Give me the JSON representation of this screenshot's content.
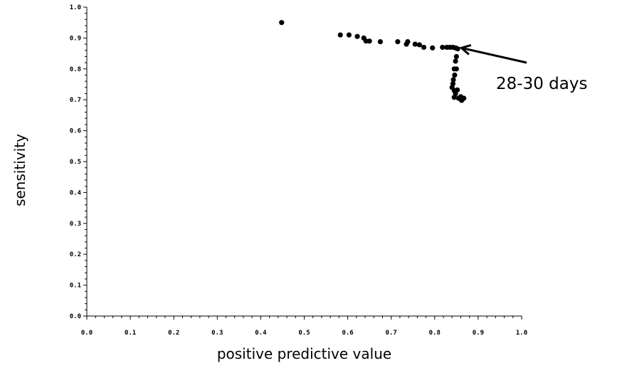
{
  "chart_data": {
    "type": "scatter",
    "title": "",
    "xlabel": "positive predictive value",
    "ylabel": "sensitivity",
    "xlim": [
      0.0,
      1.0
    ],
    "ylim": [
      0.0,
      1.0
    ],
    "xticks": [
      "0.0",
      "0.1",
      "0.2",
      "0.3",
      "0.4",
      "0.5",
      "0.6",
      "0.7",
      "0.8",
      "0.9",
      "1.0"
    ],
    "yticks": [
      "0.0",
      "0.1",
      "0.2",
      "0.3",
      "0.4",
      "0.5",
      "0.6",
      "0.7",
      "0.8",
      "0.9",
      "1.0"
    ],
    "grid": false,
    "legend": "none",
    "marker_color": "#000000",
    "points": [
      {
        "x": 0.448,
        "y": 0.95
      },
      {
        "x": 0.583,
        "y": 0.91
      },
      {
        "x": 0.603,
        "y": 0.91
      },
      {
        "x": 0.622,
        "y": 0.905
      },
      {
        "x": 0.637,
        "y": 0.9
      },
      {
        "x": 0.642,
        "y": 0.89
      },
      {
        "x": 0.65,
        "y": 0.89
      },
      {
        "x": 0.675,
        "y": 0.888
      },
      {
        "x": 0.715,
        "y": 0.888
      },
      {
        "x": 0.735,
        "y": 0.88
      },
      {
        "x": 0.738,
        "y": 0.888
      },
      {
        "x": 0.755,
        "y": 0.88
      },
      {
        "x": 0.765,
        "y": 0.878
      },
      {
        "x": 0.775,
        "y": 0.87
      },
      {
        "x": 0.795,
        "y": 0.868
      },
      {
        "x": 0.818,
        "y": 0.87
      },
      {
        "x": 0.828,
        "y": 0.87
      },
      {
        "x": 0.835,
        "y": 0.87
      },
      {
        "x": 0.842,
        "y": 0.87
      },
      {
        "x": 0.848,
        "y": 0.868
      },
      {
        "x": 0.853,
        "y": 0.865
      },
      {
        "x": 0.85,
        "y": 0.84
      },
      {
        "x": 0.848,
        "y": 0.825
      },
      {
        "x": 0.845,
        "y": 0.8
      },
      {
        "x": 0.85,
        "y": 0.8
      },
      {
        "x": 0.846,
        "y": 0.78
      },
      {
        "x": 0.843,
        "y": 0.765
      },
      {
        "x": 0.842,
        "y": 0.752
      },
      {
        "x": 0.84,
        "y": 0.74
      },
      {
        "x": 0.845,
        "y": 0.73
      },
      {
        "x": 0.852,
        "y": 0.732
      },
      {
        "x": 0.848,
        "y": 0.72
      },
      {
        "x": 0.845,
        "y": 0.708
      },
      {
        "x": 0.855,
        "y": 0.705
      },
      {
        "x": 0.86,
        "y": 0.71
      },
      {
        "x": 0.862,
        "y": 0.698
      },
      {
        "x": 0.867,
        "y": 0.705
      }
    ],
    "annotations": [
      {
        "text": "28-30 days",
        "arrow_to": {
          "x": 0.855,
          "y": 0.868
        }
      }
    ]
  }
}
